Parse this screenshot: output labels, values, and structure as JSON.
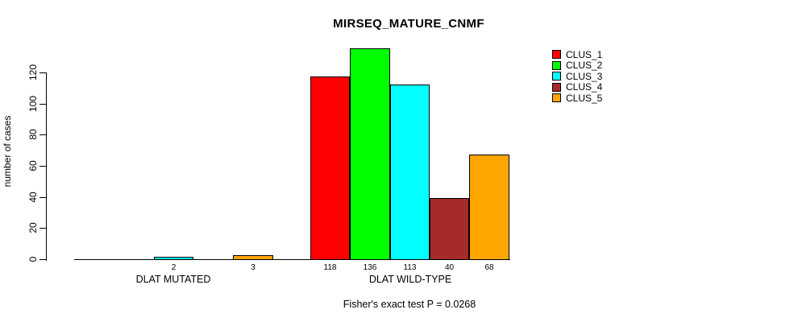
{
  "title": "MIRSEQ_MATURE_CNMF",
  "chart_data": {
    "type": "bar",
    "title": "MIRSEQ_MATURE_CNMF",
    "xlabel": "",
    "ylabel": "number of cases",
    "ylim": [
      0,
      136
    ],
    "yticks": [
      0,
      20,
      40,
      60,
      80,
      100,
      120
    ],
    "grid": false,
    "legend_position": "right",
    "categories": [
      "DLAT MUTATED",
      "DLAT WILD-TYPE"
    ],
    "series": [
      {
        "name": "CLUS_1",
        "color": "#ff0000",
        "values": [
          0,
          118
        ]
      },
      {
        "name": "CLUS_2",
        "color": "#00ff00",
        "values": [
          0,
          136
        ]
      },
      {
        "name": "CLUS_3",
        "color": "#00ffff",
        "values": [
          2,
          113
        ]
      },
      {
        "name": "CLUS_4",
        "color": "#a52a2a",
        "values": [
          0,
          40
        ]
      },
      {
        "name": "CLUS_5",
        "color": "#ffa500",
        "values": [
          3,
          68
        ]
      }
    ],
    "bar_value_labels": {
      "DLAT MUTATED": [
        null,
        null,
        "2",
        null,
        "3"
      ],
      "DLAT WILD-TYPE": [
        "118",
        "136",
        "113",
        "40",
        "68"
      ]
    },
    "annotation": "Fisher's exact test P = 0.0268",
    "colors": {
      "bar_outline": "#000000",
      "axis": "#000000",
      "text": "#000000",
      "background": "#ffffff"
    }
  }
}
